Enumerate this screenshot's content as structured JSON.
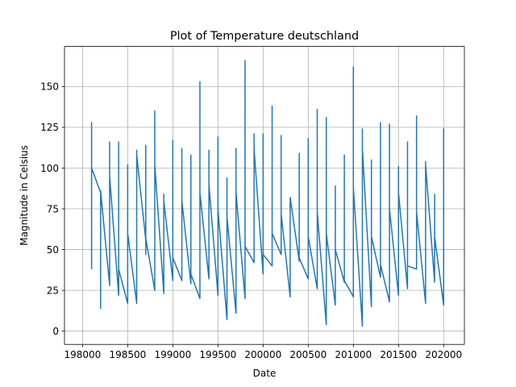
{
  "chart_data": {
    "type": "line",
    "title": "Plot of Temperature deutschland",
    "xlabel": "Date",
    "ylabel": "Magnitude in Celsius",
    "xlim": [
      198000,
      202000
    ],
    "ylim": [
      0,
      175
    ],
    "xticks": [
      198000,
      198500,
      199000,
      199500,
      200000,
      200500,
      201000,
      201500,
      202000
    ],
    "yticks": [
      0,
      25,
      50,
      75,
      100,
      125,
      150
    ],
    "grid": true,
    "line_color": "#1f77b4",
    "series": [
      {
        "values_x": [
          198100,
          198100,
          198100,
          198100,
          198100,
          198100,
          198100,
          198100,
          198200,
          198200,
          198200,
          198200,
          198200,
          198200,
          198200,
          198300,
          198300,
          198300,
          198300,
          198300,
          198300,
          198300,
          198400,
          198400,
          198400,
          198400,
          198400,
          198400,
          198400,
          198500,
          198500,
          198500,
          198500,
          198500,
          198500,
          198500,
          198600,
          198600,
          198600,
          198600,
          198600,
          198600,
          198600,
          198700,
          198700,
          198700,
          198700,
          198700,
          198700,
          198700,
          198800,
          198800,
          198800,
          198800,
          198800,
          198800,
          198800,
          198900,
          198900,
          198900,
          198900,
          198900,
          198900,
          199000,
          199000,
          199000,
          199000,
          199000,
          199000,
          199000,
          199100,
          199100,
          199100,
          199100,
          199100,
          199100,
          199100,
          199200,
          199200,
          199200,
          199200,
          199200,
          199200,
          199200,
          199300,
          199300,
          199300,
          199300,
          199300,
          199300,
          199300,
          199400,
          199400,
          199400,
          199400,
          199400,
          199400,
          199400,
          199500,
          199500,
          199500,
          199500,
          199500,
          199500,
          199600,
          199600,
          199600,
          199600,
          199600,
          199600,
          199700,
          199700,
          199700,
          199700,
          199700,
          199700,
          199700,
          199800,
          199800,
          199800,
          199800,
          199800,
          199800,
          199800,
          199900,
          199900,
          199900,
          199900,
          199900,
          199900,
          199900,
          200000,
          200000,
          200000,
          200000,
          200000,
          200000,
          200000,
          200100,
          200100,
          200100,
          200100,
          200100,
          200100,
          200100,
          200200,
          200200,
          200200,
          200200,
          200200,
          200200,
          200200,
          200300,
          200300,
          200300,
          200300,
          200300,
          200300,
          200300,
          200400,
          200400,
          200400,
          200400,
          200400,
          200400,
          200400,
          200500,
          200500,
          200500,
          200500,
          200500,
          200500,
          200500,
          200600,
          200600,
          200600,
          200600,
          200600,
          200600,
          200600,
          200700,
          200700,
          200700,
          200700,
          200700,
          200700,
          200700,
          200800,
          200800,
          200800,
          200800,
          200800,
          200800,
          200800,
          200900,
          200900,
          200900,
          200900,
          200900,
          200900,
          200900,
          201000,
          201000,
          201000,
          201000,
          201000,
          201000,
          201000,
          201100,
          201100,
          201100,
          201100,
          201100,
          201100,
          201100,
          201200,
          201200,
          201200,
          201200,
          201200,
          201200,
          201200,
          201300,
          201300,
          201300,
          201300,
          201300,
          201300,
          201300,
          201400,
          201400,
          201400,
          201400,
          201400,
          201400,
          201400,
          201500,
          201500,
          201500,
          201500,
          201500,
          201500,
          201500,
          201600,
          201600,
          201600,
          201600,
          201600,
          201600,
          201600,
          201700,
          201700,
          201700,
          201700,
          201700,
          201700,
          201700,
          201800,
          201800,
          201800,
          201800,
          201800,
          201800,
          201800,
          201900,
          201900,
          201900,
          201900,
          201900,
          201900,
          201900,
          202000,
          202000,
          202000,
          202000,
          202000,
          202000,
          202000
        ],
        "values_y": [
          38,
          128,
          45,
          120,
          72,
          110,
          55,
          100,
          85,
          14,
          80,
          27,
          65,
          40,
          86,
          28,
          116,
          35,
          95,
          50,
          80,
          95,
          22,
          116,
          30,
          90,
          45,
          70,
          38,
          17,
          102,
          25,
          80,
          40,
          65,
          60,
          17,
          111,
          30,
          90,
          50,
          75,
          108,
          56,
          114,
          47,
          95,
          60,
          80,
          57,
          25,
          135,
          30,
          110,
          55,
          85,
          102,
          23,
          84,
          35,
          70,
          50,
          80,
          31,
          117,
          40,
          90,
          55,
          75,
          45,
          31,
          112,
          45,
          95,
          60,
          85,
          80,
          29,
          108,
          40,
          95,
          55,
          80,
          35,
          20,
          153,
          30,
          130,
          60,
          100,
          85,
          32,
          111,
          40,
          95,
          55,
          80,
          90,
          22,
          119,
          35,
          90,
          50,
          75,
          7,
          94,
          20,
          80,
          45,
          70,
          11,
          112,
          25,
          90,
          50,
          75,
          85,
          20,
          166,
          30,
          140,
          60,
          110,
          52,
          42,
          121,
          50,
          100,
          65,
          85,
          112,
          35,
          121,
          45,
          100,
          60,
          85,
          47,
          40,
          138,
          50,
          110,
          65,
          90,
          60,
          47,
          120,
          55,
          100,
          65,
          85,
          72,
          21,
          82,
          35,
          70,
          50,
          75,
          82,
          43,
          109,
          50,
          90,
          60,
          80,
          45,
          32,
          118,
          40,
          95,
          55,
          80,
          58,
          26,
          136,
          35,
          110,
          55,
          85,
          73,
          4,
          131,
          20,
          100,
          50,
          80,
          60,
          16,
          89,
          25,
          75,
          45,
          70,
          50,
          30,
          108,
          40,
          90,
          55,
          80,
          31,
          21,
          162,
          30,
          130,
          60,
          100,
          88,
          3,
          124,
          20,
          100,
          50,
          80,
          112,
          15,
          105,
          25,
          90,
          50,
          75,
          58,
          33,
          128,
          40,
          100,
          55,
          80,
          41,
          18,
          127,
          30,
          100,
          55,
          80,
          75,
          22,
          101,
          30,
          85,
          50,
          75,
          85,
          26,
          116,
          35,
          95,
          55,
          80,
          40,
          38,
          132,
          45,
          110,
          60,
          90,
          73,
          17,
          104,
          25,
          90,
          50,
          80,
          102,
          30,
          84,
          40,
          75,
          55,
          70,
          58,
          16,
          124,
          25,
          100,
          50,
          80,
          40
        ]
      }
    ]
  }
}
